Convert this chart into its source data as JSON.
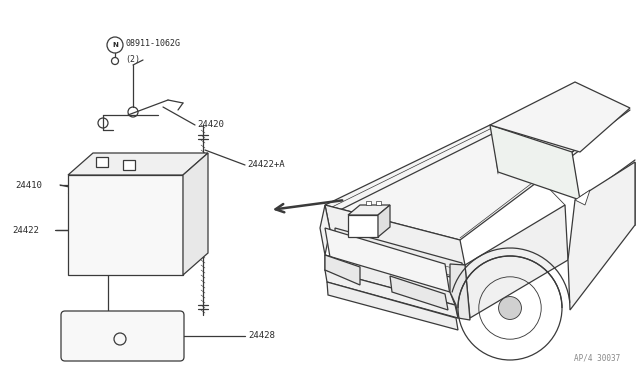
{
  "bg_color": "#ffffff",
  "line_color": "#3a3a3a",
  "text_color": "#2a2a2a",
  "fig_width": 6.4,
  "fig_height": 3.72,
  "dpi": 100,
  "parts": {
    "N_label": "ⓝ08911-1062G\n（2）",
    "24420": "24420",
    "24410": "24410",
    "24422A": "24422+A",
    "24422": "24422",
    "24428": "24428",
    "footer": "AP/4 30037"
  }
}
